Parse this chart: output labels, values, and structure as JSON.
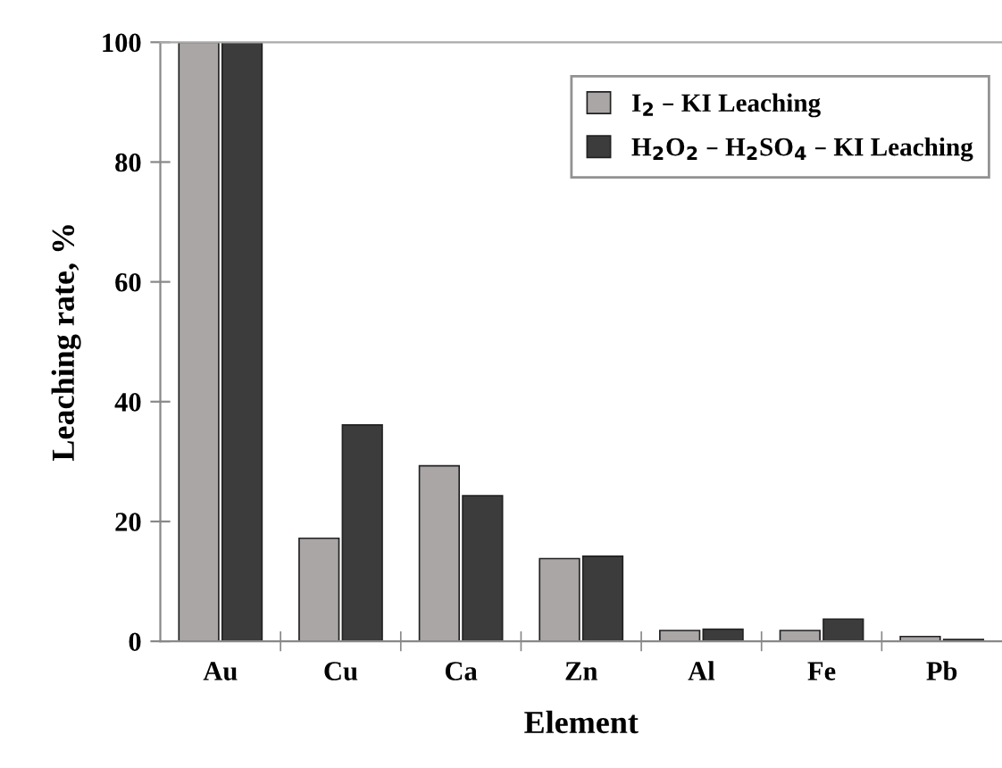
{
  "chart_data": {
    "type": "bar",
    "xlabel": "Element",
    "ylabel": "Leaching rate, %",
    "categories": [
      "Au",
      "Cu",
      "Ca",
      "Zn",
      "Al",
      "Fe",
      "Pb"
    ],
    "series": [
      {
        "name": "I$_{2}$ – KI Leaching",
        "color": "#aaa6a6",
        "values": [
          100,
          17.2,
          29.3,
          13.8,
          1.8,
          1.8,
          0.8
        ]
      },
      {
        "name": "H$_{2}$O$_{2}$ – H$_{2}$SO$_{4}$ – KI Leaching",
        "color": "#3c3c3c",
        "values": [
          100,
          36.1,
          24.3,
          14.2,
          2.0,
          3.7,
          0.3
        ]
      }
    ],
    "ylim": [
      0,
      100
    ],
    "yticks": [
      0,
      20,
      40,
      60,
      80,
      100
    ],
    "legend": "top right",
    "grid": false
  }
}
